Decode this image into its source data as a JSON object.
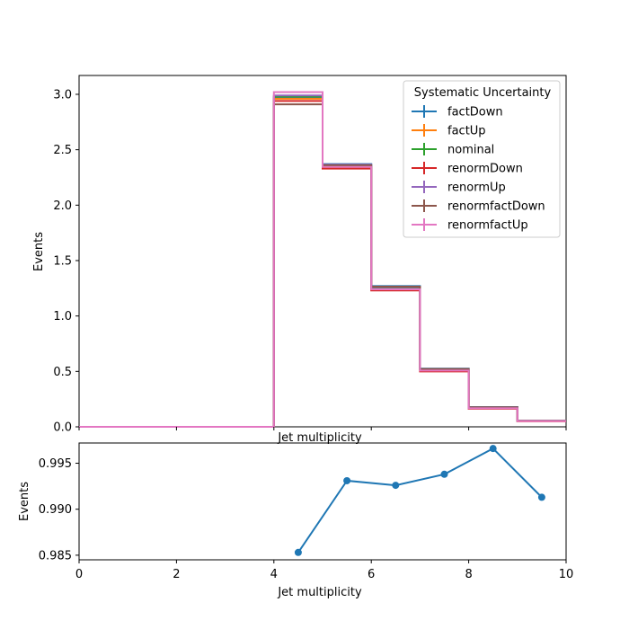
{
  "chart_data": [
    {
      "type": "step",
      "xlabel": "Jet multiplicity",
      "ylabel": "Events",
      "xlim": [
        0,
        10
      ],
      "ylim": [
        0,
        3.17
      ],
      "x_ticks": [
        0,
        2,
        4,
        6,
        8,
        10
      ],
      "y_ticks": [
        0.0,
        0.5,
        1.0,
        1.5,
        2.0,
        2.5,
        3.0
      ],
      "bin_edges": [
        0,
        1,
        2,
        3,
        4,
        5,
        6,
        7,
        8,
        9,
        10
      ],
      "legend": {
        "title": "Systematic Uncertainty",
        "placement": "top-right"
      },
      "series": [
        {
          "name": "factDown",
          "color": "#1f77b4",
          "values": [
            0,
            0,
            0,
            0,
            2.97,
            2.37,
            1.27,
            0.525,
            0.178,
            0.055
          ]
        },
        {
          "name": "factUp",
          "color": "#ff7f0e",
          "values": [
            0,
            0,
            0,
            0,
            2.96,
            2.34,
            1.235,
            0.505,
            0.166,
            0.052
          ]
        },
        {
          "name": "nominal",
          "color": "#2ca02c",
          "values": [
            0,
            0,
            0,
            0,
            2.98,
            2.355,
            1.25,
            0.515,
            0.172,
            0.053
          ]
        },
        {
          "name": "renormDown",
          "color": "#d62728",
          "values": [
            0,
            0,
            0,
            0,
            2.94,
            2.33,
            1.23,
            0.5,
            0.163,
            0.051
          ]
        },
        {
          "name": "renormUp",
          "color": "#9467bd",
          "values": [
            0,
            0,
            0,
            0,
            2.99,
            2.365,
            1.26,
            0.52,
            0.175,
            0.054
          ]
        },
        {
          "name": "renormfactDown",
          "color": "#8c564b",
          "values": [
            0,
            0,
            0,
            0,
            2.91,
            2.36,
            1.265,
            0.522,
            0.176,
            0.055
          ]
        },
        {
          "name": "renormfactUp",
          "color": "#e377c2",
          "values": [
            0,
            0,
            0,
            0,
            3.02,
            2.345,
            1.24,
            0.508,
            0.167,
            0.052
          ]
        }
      ]
    },
    {
      "type": "line",
      "xlabel": "Jet multiplicity",
      "ylabel": "Events",
      "xlim": [
        0,
        10
      ],
      "ylim": [
        0.9845,
        0.9972
      ],
      "x_ticks": [
        0,
        2,
        4,
        6,
        8,
        10
      ],
      "y_ticks": [
        0.985,
        0.99,
        0.995
      ],
      "y_tick_labels": [
        "0.985",
        "0.990",
        "0.995"
      ],
      "color": "#1f77b4",
      "x": [
        4.5,
        5.5,
        6.5,
        7.5,
        8.5,
        9.5
      ],
      "y": [
        0.9853,
        0.9931,
        0.9926,
        0.9938,
        0.9966,
        0.9913
      ]
    }
  ]
}
